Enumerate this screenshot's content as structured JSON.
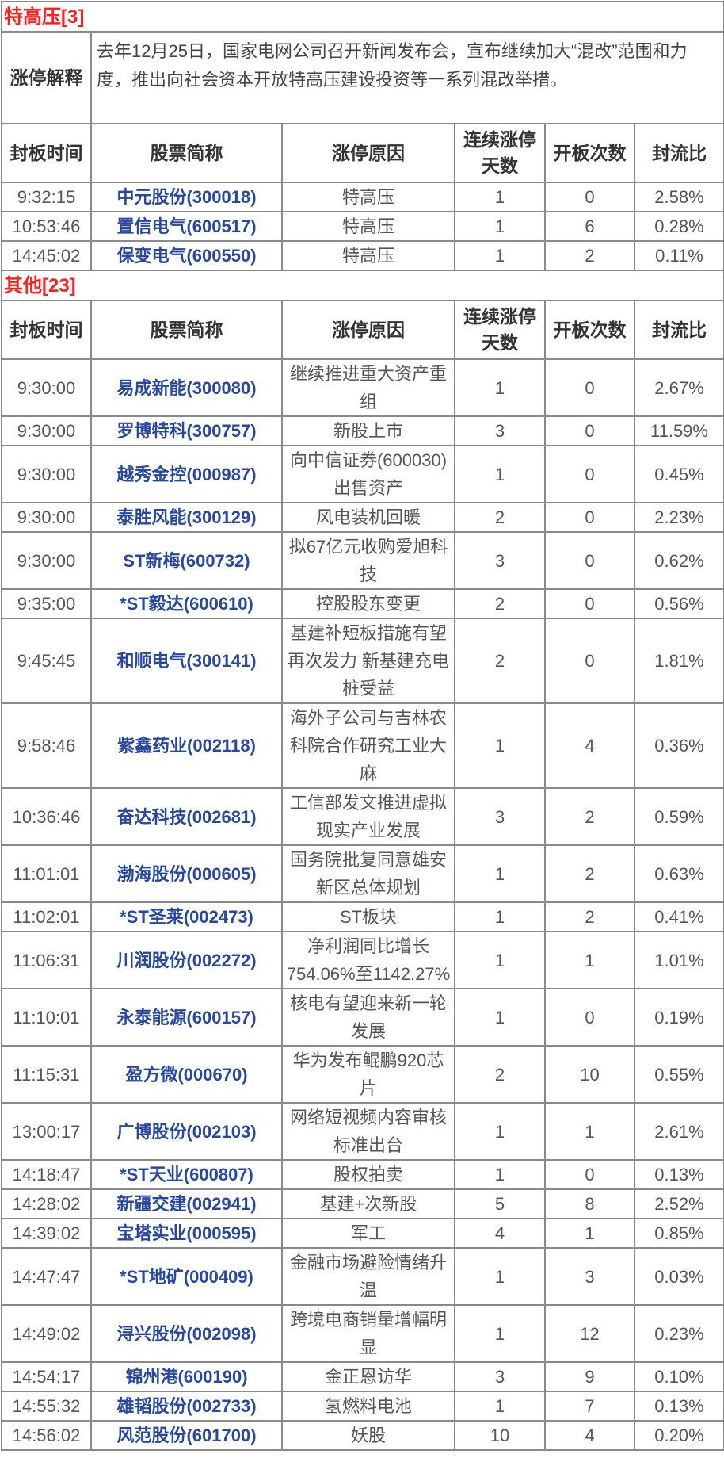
{
  "columns": [
    "封板时间",
    "股票简称",
    "涨停原因",
    "连续涨停天数",
    "开板次数",
    "封流比"
  ],
  "colors": {
    "section_title": "#ff2020",
    "stock_name": "#2747a0",
    "text": "#555555",
    "border": "#8a8a8a"
  },
  "sections": [
    {
      "title": "特高压[3]",
      "explanation_label": "涨停解释",
      "explanation": "去年12月25日，国家电网公司召开新闻发布会，宣布继续加大“混改”范围和力度，推出向社会资本开放特高压建设投资等一系列混改举措。",
      "rows": [
        {
          "time": "9:32:15",
          "name": "中元股份(300018)",
          "reason": "特高压",
          "days": "1",
          "opens": "0",
          "ratio": "2.58%"
        },
        {
          "time": "10:53:46",
          "name": "置信电气(600517)",
          "reason": "特高压",
          "days": "1",
          "opens": "6",
          "ratio": "0.28%"
        },
        {
          "time": "14:45:02",
          "name": "保变电气(600550)",
          "reason": "特高压",
          "days": "1",
          "opens": "2",
          "ratio": "0.11%"
        }
      ]
    },
    {
      "title": "其他[23]",
      "rows": [
        {
          "time": "9:30:00",
          "name": "易成新能(300080)",
          "reason": "继续推进重大资产重组",
          "days": "1",
          "opens": "0",
          "ratio": "2.67%"
        },
        {
          "time": "9:30:00",
          "name": "罗博特科(300757)",
          "reason": "新股上市",
          "days": "3",
          "opens": "0",
          "ratio": "11.59%"
        },
        {
          "time": "9:30:00",
          "name": "越秀金控(000987)",
          "reason": "向中信证券(600030)出售资产",
          "days": "1",
          "opens": "0",
          "ratio": "0.45%"
        },
        {
          "time": "9:30:00",
          "name": "泰胜风能(300129)",
          "reason": "风电装机回暖",
          "days": "2",
          "opens": "0",
          "ratio": "2.23%"
        },
        {
          "time": "9:30:00",
          "name": "ST新梅(600732)",
          "reason": "拟67亿元收购爱旭科技",
          "days": "3",
          "opens": "0",
          "ratio": "0.62%"
        },
        {
          "time": "9:35:00",
          "name": "*ST毅达(600610)",
          "reason": "控股股东变更",
          "days": "2",
          "opens": "0",
          "ratio": "0.56%"
        },
        {
          "time": "9:45:45",
          "name": "和顺电气(300141)",
          "reason": "基建补短板措施有望再次发力 新基建充电桩受益",
          "days": "2",
          "opens": "0",
          "ratio": "1.81%"
        },
        {
          "time": "9:58:46",
          "name": "紫鑫药业(002118)",
          "reason": "海外子公司与吉林农科院合作研究工业大麻",
          "days": "1",
          "opens": "4",
          "ratio": "0.36%"
        },
        {
          "time": "10:36:46",
          "name": "奋达科技(002681)",
          "reason": "工信部发文推进虚拟现实产业发展",
          "days": "3",
          "opens": "2",
          "ratio": "0.59%"
        },
        {
          "time": "11:01:01",
          "name": "渤海股份(000605)",
          "reason": "国务院批复同意雄安新区总体规划",
          "days": "1",
          "opens": "2",
          "ratio": "0.63%"
        },
        {
          "time": "11:02:01",
          "name": "*ST圣莱(002473)",
          "reason": "ST板块",
          "days": "1",
          "opens": "2",
          "ratio": "0.41%"
        },
        {
          "time": "11:06:31",
          "name": "川润股份(002272)",
          "reason": "净利润同比增长754.06%至1142.27%",
          "days": "1",
          "opens": "1",
          "ratio": "1.01%"
        },
        {
          "time": "11:10:01",
          "name": "永泰能源(600157)",
          "reason": "核电有望迎来新一轮发展",
          "days": "1",
          "opens": "0",
          "ratio": "0.19%"
        },
        {
          "time": "11:15:31",
          "name": "盈方微(000670)",
          "reason": "华为发布鲲鹏920芯片",
          "days": "2",
          "opens": "10",
          "ratio": "0.55%"
        },
        {
          "time": "13:00:17",
          "name": "广博股份(002103)",
          "reason": "网络短视频内容审核标准出台",
          "days": "1",
          "opens": "1",
          "ratio": "2.61%"
        },
        {
          "time": "14:18:47",
          "name": "*ST天业(600807)",
          "reason": "股权拍卖",
          "days": "1",
          "opens": "0",
          "ratio": "0.13%"
        },
        {
          "time": "14:28:02",
          "name": "新疆交建(002941)",
          "reason": "基建+次新股",
          "days": "5",
          "opens": "8",
          "ratio": "2.52%"
        },
        {
          "time": "14:39:02",
          "name": "宝塔实业(000595)",
          "reason": "军工",
          "days": "4",
          "opens": "1",
          "ratio": "0.85%"
        },
        {
          "time": "14:47:47",
          "name": "*ST地矿(000409)",
          "reason": "金融市场避险情绪升温",
          "days": "1",
          "opens": "3",
          "ratio": "0.03%"
        },
        {
          "time": "14:49:02",
          "name": "浔兴股份(002098)",
          "reason": "跨境电商销量增幅明显",
          "days": "1",
          "opens": "12",
          "ratio": "0.23%"
        },
        {
          "time": "14:54:17",
          "name": "锦州港(600190)",
          "reason": "金正恩访华",
          "days": "3",
          "opens": "9",
          "ratio": "0.10%"
        },
        {
          "time": "14:55:32",
          "name": "雄韬股份(002733)",
          "reason": "氢燃料电池",
          "days": "1",
          "opens": "7",
          "ratio": "0.13%"
        },
        {
          "time": "14:56:02",
          "name": "风范股份(601700)",
          "reason": "妖股",
          "days": "10",
          "opens": "4",
          "ratio": "0.20%"
        }
      ]
    }
  ]
}
